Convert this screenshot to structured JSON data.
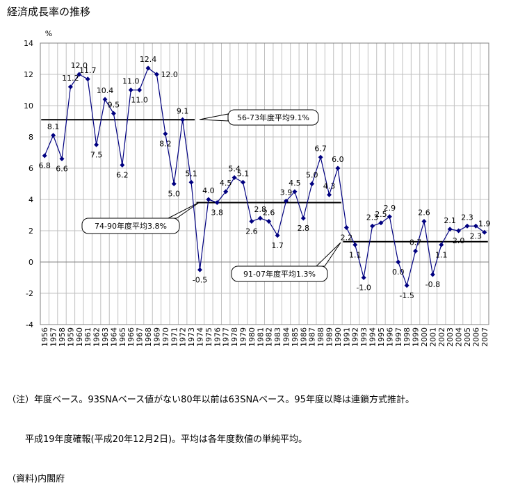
{
  "title": "経済成長率の推移",
  "footnotes": [
    "（注）年度ベース。93SNAベース値がない80年以前は63SNAベース。95年度以降は連鎖方式推計。",
    "　　平成19年度確報(平成20年12月2日)。平均は各年度数値の単純平均。",
    "（資料)内閣府"
  ],
  "chart_data": {
    "type": "line",
    "title": "経済成長率の推移",
    "ylabel": "%",
    "xlabel": "",
    "ylim": [
      -4,
      14
    ],
    "yticks": [
      -4,
      -2,
      0,
      2,
      4,
      6,
      8,
      10,
      12,
      14
    ],
    "grid": true,
    "x": [
      1956,
      1957,
      1958,
      1959,
      1960,
      1961,
      1962,
      1963,
      1964,
      1965,
      1966,
      1967,
      1968,
      1969,
      1970,
      1971,
      1972,
      1973,
      1974,
      1975,
      1976,
      1977,
      1978,
      1979,
      1980,
      1981,
      1982,
      1983,
      1984,
      1985,
      1986,
      1987,
      1988,
      1989,
      1990,
      1991,
      1992,
      1993,
      1994,
      1995,
      1996,
      1997,
      1998,
      1999,
      2000,
      2001,
      2002,
      2003,
      2004,
      2005,
      2006,
      2007
    ],
    "values": [
      6.8,
      8.1,
      6.6,
      11.2,
      12.0,
      11.7,
      7.5,
      10.4,
      9.5,
      6.2,
      11.0,
      11.0,
      12.4,
      12.0,
      8.2,
      5.0,
      9.1,
      5.1,
      -0.5,
      4.0,
      3.8,
      4.5,
      5.4,
      5.1,
      2.6,
      2.8,
      2.6,
      1.7,
      3.9,
      4.5,
      2.8,
      5.0,
      6.7,
      4.3,
      6.0,
      2.2,
      1.1,
      -1.0,
      2.3,
      2.5,
      2.9,
      0.0,
      -1.5,
      0.7,
      2.6,
      -0.8,
      1.1,
      2.1,
      2.0,
      2.3,
      2.3,
      1.9
    ],
    "labels": [
      "6.8",
      "8.1",
      "6.6",
      "11.2",
      "12.0",
      "11.7",
      "7.5",
      "10.4",
      "9.5",
      "6.2",
      "11.0",
      "11.0",
      "12.4",
      "12.0",
      "8.2",
      "5.0",
      "9.1",
      "5.1",
      "-0.5",
      "4.0",
      "3.8",
      "4.5",
      "5.4",
      "5.1",
      "2.6",
      "2.8",
      "2.6",
      "1.7",
      "3.9",
      "4.5",
      "2.8",
      "5.0",
      "6.7",
      "4.3",
      "6.0",
      "2.2",
      "1.1",
      "-1.0",
      "2.3",
      "2.5",
      "2.9",
      "0.0",
      "-1.5",
      "0.7",
      "2.6",
      "-0.8",
      "1.1",
      "2.1",
      "2.0",
      "2.3",
      "2.3",
      "1.9"
    ],
    "label_pos": [
      "below",
      "above",
      "below",
      "above",
      "above",
      "above",
      "below",
      "above",
      "above",
      "below",
      "above",
      "below",
      "above",
      "right",
      "below",
      "below",
      "above",
      "above",
      "below",
      "above",
      "below",
      "above",
      "above",
      "above",
      "below",
      "above",
      "above",
      "below",
      "above",
      "above",
      "below",
      "above",
      "above",
      "above",
      "above",
      "below",
      "below",
      "below",
      "above",
      "above",
      "above",
      "below",
      "below",
      "above",
      "above",
      "below",
      "below",
      "above",
      "below",
      "above",
      "below",
      "above"
    ],
    "averages": [
      {
        "label": "56-73年度平均9.1%",
        "value": 9.1,
        "from": 1956,
        "to": 1973
      },
      {
        "label": "74-90年度平均3.8%",
        "value": 3.8,
        "from": 1974,
        "to": 1990
      },
      {
        "label": "91-07年度平均1.3%",
        "value": 1.3,
        "from": 1991,
        "to": 2007
      }
    ],
    "colors": {
      "series": "#000080",
      "average": "#000000",
      "grid": "#c0c0c0"
    }
  }
}
